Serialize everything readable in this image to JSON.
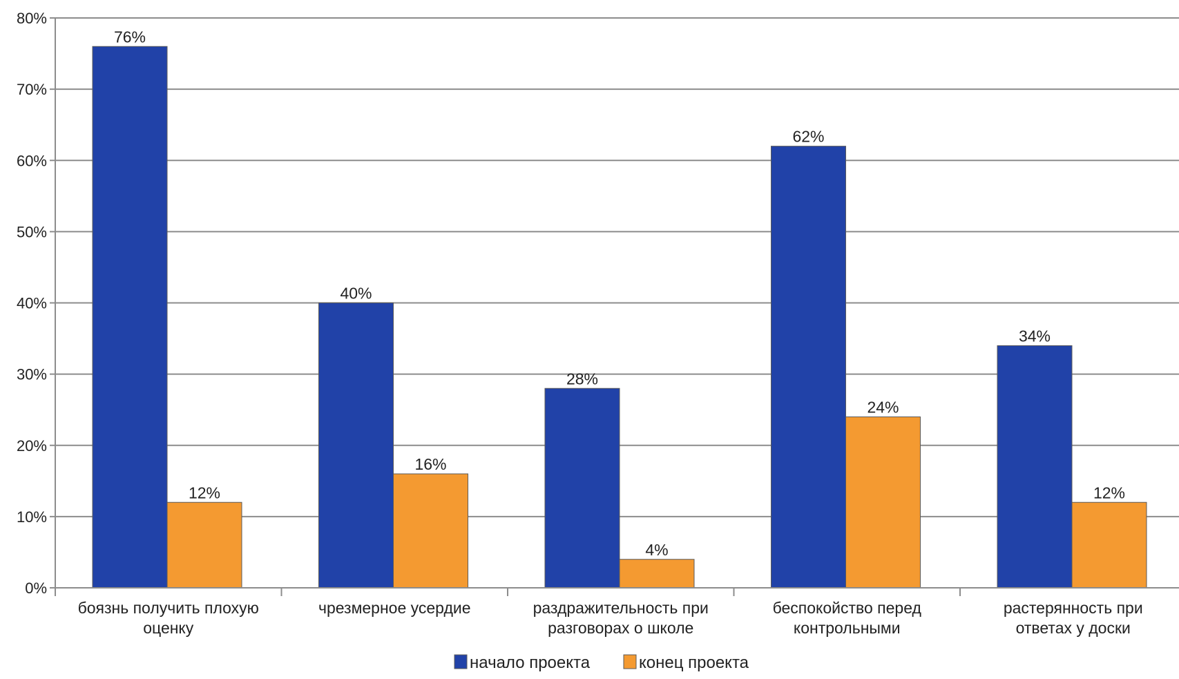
{
  "chart_data": {
    "type": "bar",
    "categories": [
      [
        "боязнь получить плохую",
        "оценку"
      ],
      [
        "чрезмерное усердие"
      ],
      [
        "раздражительность при",
        "разговорах о школе"
      ],
      [
        "беспокойство перед",
        "контрольными"
      ],
      [
        "растерянность при",
        "ответах у доски"
      ]
    ],
    "series": [
      {
        "name": "начало проекта",
        "color": "#2142a8",
        "values": [
          76,
          40,
          28,
          62,
          34
        ]
      },
      {
        "name": "конец проекта",
        "color": "#f49a31",
        "values": [
          12,
          16,
          4,
          24,
          12
        ]
      }
    ],
    "value_suffix": "%",
    "ylim": [
      0,
      80
    ],
    "yticks": [
      0,
      10,
      20,
      30,
      40,
      50,
      60,
      70,
      80
    ],
    "ytick_labels": [
      "0%",
      "10%",
      "20%",
      "30%",
      "40%",
      "50%",
      "60%",
      "70%",
      "80%"
    ],
    "grid": true,
    "legend": "bottom",
    "title": "",
    "xlabel": "",
    "ylabel": ""
  }
}
